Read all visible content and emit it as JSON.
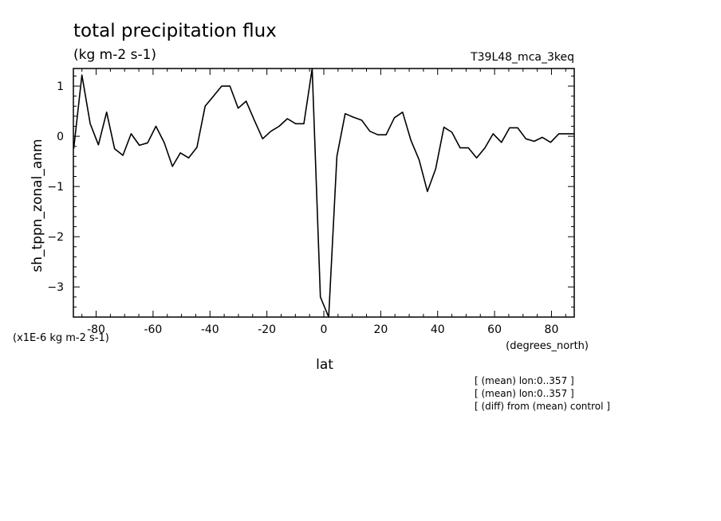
{
  "chart_data": {
    "type": "line",
    "title": "total precipitation flux",
    "subtitle": "(kg m-2 s-1)",
    "experiment": "T39L48_mca_3keq",
    "xlabel": "lat",
    "xunits": "(degrees_north)",
    "ylabel": "sh_tppn_zonal_anm",
    "yscale_note": "(x1E-6 kg m-2 s-1)",
    "xlim": [
      -88,
      88
    ],
    "ylim": [
      -3.6,
      1.35
    ],
    "xticks": [
      -80,
      -60,
      -40,
      -20,
      0,
      20,
      40,
      60,
      80
    ],
    "yticks": [
      1,
      0,
      -1,
      -2,
      -3
    ],
    "grid": false,
    "notes": [
      "[ (mean) lon:0..357 ]",
      "[ (mean) lon:0..357 ]",
      "[ (diff) from (mean) control ]"
    ],
    "series": [
      {
        "color": "#000000",
        "x": [
          -87.9,
          -85,
          -82.1,
          -79.2,
          -76.3,
          -73.5,
          -70.6,
          -67.7,
          -64.8,
          -61.9,
          -59,
          -56.1,
          -53.2,
          -50.4,
          -47.5,
          -44.6,
          -41.7,
          -38.8,
          -35.9,
          -33,
          -30.1,
          -27.3,
          -24.4,
          -21.5,
          -18.6,
          -15.7,
          -12.8,
          -9.9,
          -7,
          -4.1,
          -1.2,
          1.7,
          4.6,
          7.5,
          10.4,
          13.3,
          16.2,
          19,
          21.9,
          24.8,
          27.7,
          30.6,
          33.5,
          36.4,
          39.3,
          42.2,
          45,
          47.9,
          50.8,
          53.7,
          56.6,
          59.5,
          62.4,
          65.3,
          68.1,
          71,
          73.9,
          76.8,
          79.7,
          82.6,
          85.5,
          88
        ],
        "y": [
          -0.25,
          1.22,
          0.25,
          -0.17,
          0.48,
          -0.25,
          -0.38,
          0.05,
          -0.18,
          -0.13,
          0.2,
          -0.12,
          -0.6,
          -0.33,
          -0.43,
          -0.22,
          0.6,
          0.8,
          1.0,
          1.0,
          0.56,
          0.7,
          0.32,
          -0.05,
          0.1,
          0.2,
          0.35,
          0.25,
          0.25,
          1.35,
          -3.2,
          -3.6,
          -0.4,
          0.45,
          0.38,
          0.32,
          0.1,
          0.03,
          0.03,
          0.37,
          0.48,
          -0.08,
          -0.47,
          -1.1,
          -0.65,
          0.18,
          0.08,
          -0.23,
          -0.23,
          -0.43,
          -0.23,
          0.05,
          -0.12,
          0.17,
          0.17,
          -0.05,
          -0.1,
          -0.02,
          -0.12,
          0.05,
          0.05,
          0.05
        ]
      }
    ]
  }
}
